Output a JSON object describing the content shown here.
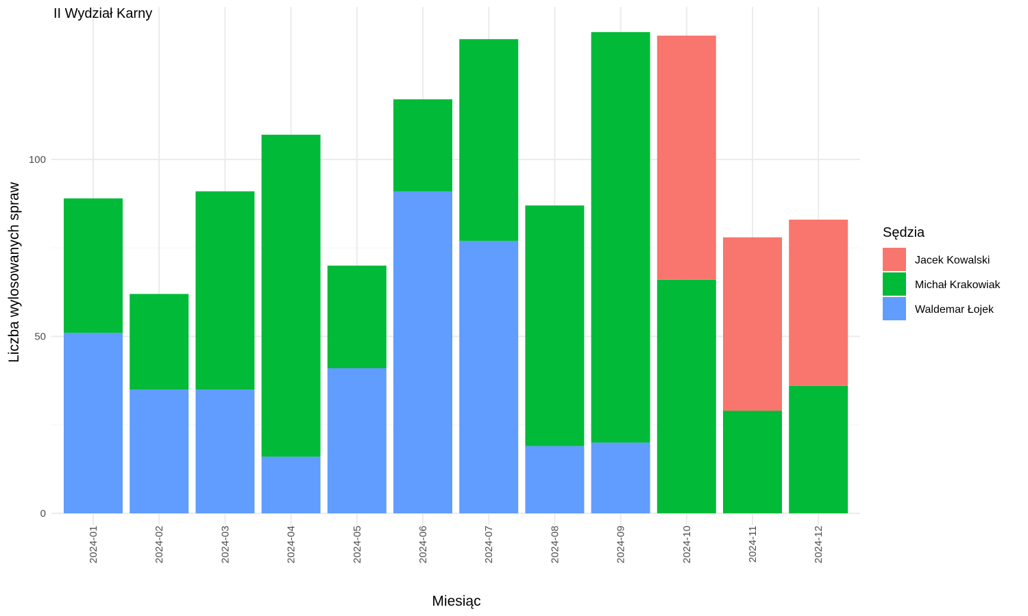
{
  "chart_data": {
    "type": "bar",
    "stacked": true,
    "title": "II Wydział Karny",
    "xlabel": "Miesiąc",
    "ylabel": "Liczba wylosowanych spraw",
    "categories": [
      "2024-01",
      "2024-02",
      "2024-03",
      "2024-04",
      "2024-05",
      "2024-06",
      "2024-07",
      "2024-08",
      "2024-09",
      "2024-10",
      "2024-11",
      "2024-12"
    ],
    "series": [
      {
        "name": "Waldemar Łojek",
        "color": "#619CFF",
        "values": [
          51,
          35,
          35,
          16,
          41,
          91,
          77,
          19,
          20,
          0,
          0,
          0
        ]
      },
      {
        "name": "Michał Krakowiak",
        "color": "#00BA38",
        "values": [
          38,
          27,
          56,
          91,
          29,
          26,
          57,
          68,
          116,
          66,
          29,
          36
        ]
      },
      {
        "name": "Jacek Kowalski",
        "color": "#F8766D",
        "values": [
          0,
          0,
          0,
          0,
          0,
          0,
          0,
          0,
          0,
          69,
          49,
          47
        ]
      }
    ],
    "yticks": [
      0,
      50,
      100
    ],
    "ylim": [
      0,
      143
    ],
    "grid": true,
    "legend": {
      "title": "Sędzia",
      "position": "right",
      "order": [
        "Jacek Kowalski",
        "Michał Krakowiak",
        "Waldemar Łojek"
      ]
    }
  }
}
